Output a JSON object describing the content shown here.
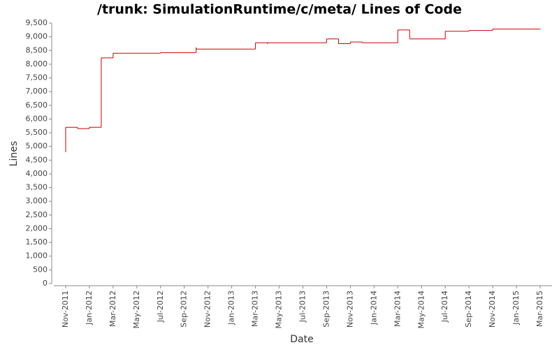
{
  "chart_data": {
    "type": "line",
    "drawstyle": "steps-post",
    "title": "/trunk: SimulationRuntime/c/meta/ Lines of Code",
    "xlabel": "Date",
    "ylabel": "Lines",
    "x": [
      "2011-11",
      "2011-11",
      "2011-12",
      "2012-01",
      "2012-02",
      "2012-02",
      "2012-03",
      "2012-07",
      "2012-10",
      "2012-10",
      "2013-03",
      "2013-04",
      "2013-04",
      "2013-09",
      "2013-10",
      "2013-10",
      "2013-11",
      "2013-12",
      "2014-03",
      "2014-03",
      "2014-04",
      "2014-07",
      "2014-09",
      "2014-11",
      "2014-11",
      "2015-03"
    ],
    "series": [
      {
        "name": "Lines",
        "color": "#cc0000",
        "values": [
          4800,
          5700,
          5650,
          5700,
          8200,
          8230,
          8400,
          8420,
          8600,
          8550,
          8780,
          8750,
          8780,
          8920,
          8900,
          8750,
          8810,
          8780,
          9050,
          9250,
          8920,
          9200,
          9230,
          9250,
          9280,
          9280
        ]
      }
    ],
    "xlim": [
      "2011-10",
      "2015-04"
    ],
    "xticks": [
      {
        "value": "2011-11",
        "label": "Nov-2011"
      },
      {
        "value": "2012-01",
        "label": "Jan-2012"
      },
      {
        "value": "2012-03",
        "label": "Mar-2012"
      },
      {
        "value": "2012-05",
        "label": "May-2012"
      },
      {
        "value": "2012-07",
        "label": "Jul-2012"
      },
      {
        "value": "2012-09",
        "label": "Sep-2012"
      },
      {
        "value": "2012-11",
        "label": "Nov-2012"
      },
      {
        "value": "2013-01",
        "label": "Jan-2013"
      },
      {
        "value": "2013-03",
        "label": "Mar-2013"
      },
      {
        "value": "2013-05",
        "label": "May-2013"
      },
      {
        "value": "2013-07",
        "label": "Jul-2013"
      },
      {
        "value": "2013-09",
        "label": "Sep-2013"
      },
      {
        "value": "2013-11",
        "label": "Nov-2013"
      },
      {
        "value": "2014-01",
        "label": "Jan-2014"
      },
      {
        "value": "2014-03",
        "label": "Mar-2014"
      },
      {
        "value": "2014-05",
        "label": "May-2014"
      },
      {
        "value": "2014-07",
        "label": "Jul-2014"
      },
      {
        "value": "2014-09",
        "label": "Sep-2014"
      },
      {
        "value": "2014-11",
        "label": "Nov-2014"
      },
      {
        "value": "2015-01",
        "label": "Jan-2015"
      },
      {
        "value": "2015-03",
        "label": "Mar-2015"
      }
    ],
    "ylim": [
      0,
      9500
    ],
    "yticks": [
      0,
      500,
      {
        "value": 1000,
        "label": "1,000"
      },
      {
        "value": 1500,
        "label": "1,500"
      },
      {
        "value": 2000,
        "label": "2,000"
      },
      {
        "value": 2500,
        "label": "2,500"
      },
      {
        "value": 3000,
        "label": "3,000"
      },
      {
        "value": 3500,
        "label": "3,500"
      },
      {
        "value": 4000,
        "label": "4,000"
      },
      {
        "value": 4500,
        "label": "4,500"
      },
      {
        "value": 5000,
        "label": "5,000"
      },
      {
        "value": 5500,
        "label": "5,500"
      },
      {
        "value": 6000,
        "label": "6,000"
      },
      {
        "value": 6500,
        "label": "6,500"
      },
      {
        "value": 7000,
        "label": "7,000"
      },
      {
        "value": 7500,
        "label": "7,500"
      },
      {
        "value": 8000,
        "label": "8,000"
      },
      {
        "value": 8500,
        "label": "8,500"
      },
      {
        "value": 9000,
        "label": "9,000"
      },
      {
        "value": 9500,
        "label": "9,500"
      }
    ],
    "grid": false
  }
}
